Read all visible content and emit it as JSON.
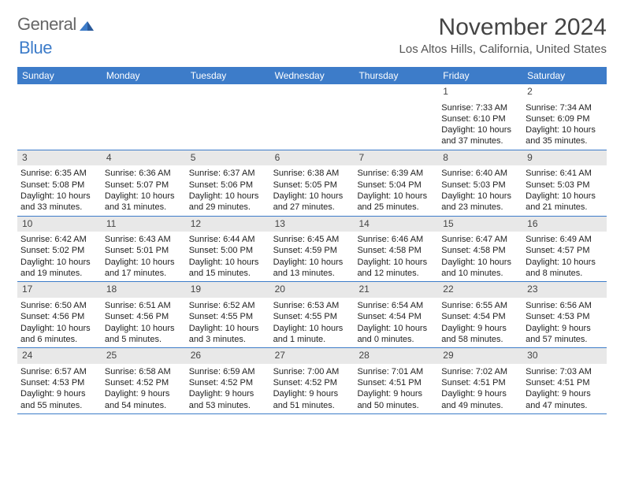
{
  "logo": {
    "general": "General",
    "blue": "Blue",
    "icon_color": "#3d7cc9"
  },
  "title": "November 2024",
  "location": "Los Altos Hills, California, United States",
  "header_bg": "#3d7cc9",
  "day_bar_bg": "#e8e8e8",
  "border_color": "#3d7cc9",
  "day_names": [
    "Sunday",
    "Monday",
    "Tuesday",
    "Wednesday",
    "Thursday",
    "Friday",
    "Saturday"
  ],
  "weeks": [
    [
      {
        "num": "",
        "sunrise": "",
        "sunset": "",
        "daylight": ""
      },
      {
        "num": "",
        "sunrise": "",
        "sunset": "",
        "daylight": ""
      },
      {
        "num": "",
        "sunrise": "",
        "sunset": "",
        "daylight": ""
      },
      {
        "num": "",
        "sunrise": "",
        "sunset": "",
        "daylight": ""
      },
      {
        "num": "",
        "sunrise": "",
        "sunset": "",
        "daylight": ""
      },
      {
        "num": "1",
        "sunrise": "Sunrise: 7:33 AM",
        "sunset": "Sunset: 6:10 PM",
        "daylight": "Daylight: 10 hours and 37 minutes."
      },
      {
        "num": "2",
        "sunrise": "Sunrise: 7:34 AM",
        "sunset": "Sunset: 6:09 PM",
        "daylight": "Daylight: 10 hours and 35 minutes."
      }
    ],
    [
      {
        "num": "3",
        "sunrise": "Sunrise: 6:35 AM",
        "sunset": "Sunset: 5:08 PM",
        "daylight": "Daylight: 10 hours and 33 minutes."
      },
      {
        "num": "4",
        "sunrise": "Sunrise: 6:36 AM",
        "sunset": "Sunset: 5:07 PM",
        "daylight": "Daylight: 10 hours and 31 minutes."
      },
      {
        "num": "5",
        "sunrise": "Sunrise: 6:37 AM",
        "sunset": "Sunset: 5:06 PM",
        "daylight": "Daylight: 10 hours and 29 minutes."
      },
      {
        "num": "6",
        "sunrise": "Sunrise: 6:38 AM",
        "sunset": "Sunset: 5:05 PM",
        "daylight": "Daylight: 10 hours and 27 minutes."
      },
      {
        "num": "7",
        "sunrise": "Sunrise: 6:39 AM",
        "sunset": "Sunset: 5:04 PM",
        "daylight": "Daylight: 10 hours and 25 minutes."
      },
      {
        "num": "8",
        "sunrise": "Sunrise: 6:40 AM",
        "sunset": "Sunset: 5:03 PM",
        "daylight": "Daylight: 10 hours and 23 minutes."
      },
      {
        "num": "9",
        "sunrise": "Sunrise: 6:41 AM",
        "sunset": "Sunset: 5:03 PM",
        "daylight": "Daylight: 10 hours and 21 minutes."
      }
    ],
    [
      {
        "num": "10",
        "sunrise": "Sunrise: 6:42 AM",
        "sunset": "Sunset: 5:02 PM",
        "daylight": "Daylight: 10 hours and 19 minutes."
      },
      {
        "num": "11",
        "sunrise": "Sunrise: 6:43 AM",
        "sunset": "Sunset: 5:01 PM",
        "daylight": "Daylight: 10 hours and 17 minutes."
      },
      {
        "num": "12",
        "sunrise": "Sunrise: 6:44 AM",
        "sunset": "Sunset: 5:00 PM",
        "daylight": "Daylight: 10 hours and 15 minutes."
      },
      {
        "num": "13",
        "sunrise": "Sunrise: 6:45 AM",
        "sunset": "Sunset: 4:59 PM",
        "daylight": "Daylight: 10 hours and 13 minutes."
      },
      {
        "num": "14",
        "sunrise": "Sunrise: 6:46 AM",
        "sunset": "Sunset: 4:58 PM",
        "daylight": "Daylight: 10 hours and 12 minutes."
      },
      {
        "num": "15",
        "sunrise": "Sunrise: 6:47 AM",
        "sunset": "Sunset: 4:58 PM",
        "daylight": "Daylight: 10 hours and 10 minutes."
      },
      {
        "num": "16",
        "sunrise": "Sunrise: 6:49 AM",
        "sunset": "Sunset: 4:57 PM",
        "daylight": "Daylight: 10 hours and 8 minutes."
      }
    ],
    [
      {
        "num": "17",
        "sunrise": "Sunrise: 6:50 AM",
        "sunset": "Sunset: 4:56 PM",
        "daylight": "Daylight: 10 hours and 6 minutes."
      },
      {
        "num": "18",
        "sunrise": "Sunrise: 6:51 AM",
        "sunset": "Sunset: 4:56 PM",
        "daylight": "Daylight: 10 hours and 5 minutes."
      },
      {
        "num": "19",
        "sunrise": "Sunrise: 6:52 AM",
        "sunset": "Sunset: 4:55 PM",
        "daylight": "Daylight: 10 hours and 3 minutes."
      },
      {
        "num": "20",
        "sunrise": "Sunrise: 6:53 AM",
        "sunset": "Sunset: 4:55 PM",
        "daylight": "Daylight: 10 hours and 1 minute."
      },
      {
        "num": "21",
        "sunrise": "Sunrise: 6:54 AM",
        "sunset": "Sunset: 4:54 PM",
        "daylight": "Daylight: 10 hours and 0 minutes."
      },
      {
        "num": "22",
        "sunrise": "Sunrise: 6:55 AM",
        "sunset": "Sunset: 4:54 PM",
        "daylight": "Daylight: 9 hours and 58 minutes."
      },
      {
        "num": "23",
        "sunrise": "Sunrise: 6:56 AM",
        "sunset": "Sunset: 4:53 PM",
        "daylight": "Daylight: 9 hours and 57 minutes."
      }
    ],
    [
      {
        "num": "24",
        "sunrise": "Sunrise: 6:57 AM",
        "sunset": "Sunset: 4:53 PM",
        "daylight": "Daylight: 9 hours and 55 minutes."
      },
      {
        "num": "25",
        "sunrise": "Sunrise: 6:58 AM",
        "sunset": "Sunset: 4:52 PM",
        "daylight": "Daylight: 9 hours and 54 minutes."
      },
      {
        "num": "26",
        "sunrise": "Sunrise: 6:59 AM",
        "sunset": "Sunset: 4:52 PM",
        "daylight": "Daylight: 9 hours and 53 minutes."
      },
      {
        "num": "27",
        "sunrise": "Sunrise: 7:00 AM",
        "sunset": "Sunset: 4:52 PM",
        "daylight": "Daylight: 9 hours and 51 minutes."
      },
      {
        "num": "28",
        "sunrise": "Sunrise: 7:01 AM",
        "sunset": "Sunset: 4:51 PM",
        "daylight": "Daylight: 9 hours and 50 minutes."
      },
      {
        "num": "29",
        "sunrise": "Sunrise: 7:02 AM",
        "sunset": "Sunset: 4:51 PM",
        "daylight": "Daylight: 9 hours and 49 minutes."
      },
      {
        "num": "30",
        "sunrise": "Sunrise: 7:03 AM",
        "sunset": "Sunset: 4:51 PM",
        "daylight": "Daylight: 9 hours and 47 minutes."
      }
    ]
  ]
}
